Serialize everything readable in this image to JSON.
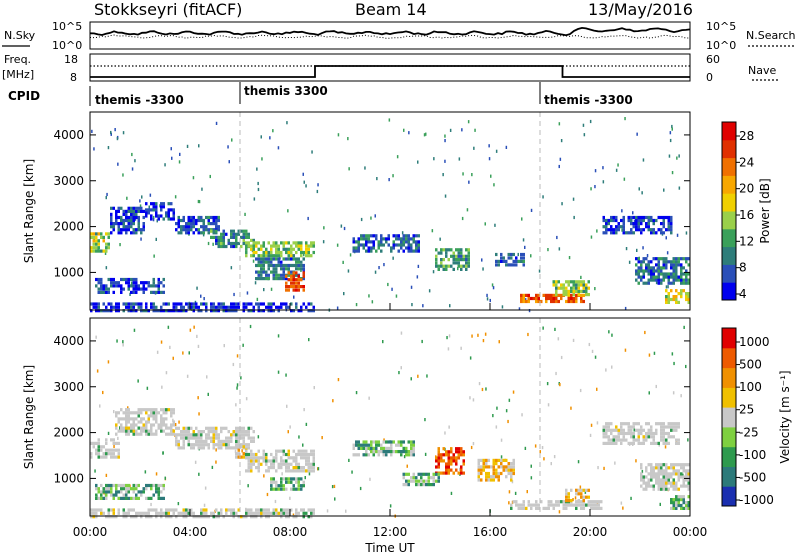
{
  "header": {
    "station": "Stokkseyri (fitACF)",
    "beam": "Beam 14",
    "date": "13/May/2016"
  },
  "summary": {
    "nsky_label": "N.Sky",
    "nsky_ticks": [
      "10^5",
      "10^0"
    ],
    "nsearch_label": "N.Search",
    "nsearch_ticks": [
      "10^5",
      "10^0"
    ],
    "freq_label_line1": "Freq.",
    "freq_label_line2": "[MHz]",
    "freq_ticks": [
      "18",
      "8"
    ],
    "nave_label": "Nave",
    "nave_ticks": [
      "60",
      "0"
    ],
    "cpid_label": "CPID",
    "cpid_segments": [
      {
        "start_hour": 0,
        "end_hour": 6,
        "name": "themis -3300"
      },
      {
        "start_hour": 6,
        "end_hour": 18,
        "name": "themis 3300"
      },
      {
        "start_hour": 18,
        "end_hour": 24,
        "name": "themis -3300"
      }
    ]
  },
  "chart_data": [
    {
      "type": "heatmap",
      "panel": "power",
      "ylabel": "Slant Range [km]",
      "xlabel": "",
      "xlim_hours": [
        0,
        24
      ],
      "ylim_km": [
        180,
        4500
      ],
      "yticks": [
        "4000",
        "3000",
        "2000",
        "1000"
      ],
      "colorbar": {
        "label": "Power [dB]",
        "ticks": [
          "28",
          "24",
          "20",
          "16",
          "12",
          "8",
          "4"
        ],
        "colors": [
          "#0000ee",
          "#2a4fb8",
          "#2e7d7a",
          "#3aa05a",
          "#9ad04a",
          "#f0d000",
          "#f7a700",
          "#f07000",
          "#e03000",
          "#e00000"
        ]
      },
      "regions": [
        {
          "t0": 0.0,
          "t1": 0.8,
          "r0": 1500,
          "r1": 1950,
          "v": 16
        },
        {
          "t0": 0.8,
          "t1": 2.2,
          "r0": 1900,
          "r1": 2500,
          "v": 6
        },
        {
          "t0": 2.2,
          "t1": 3.4,
          "r0": 2200,
          "r1": 2600,
          "v": 5
        },
        {
          "t0": 3.4,
          "t1": 5.2,
          "r0": 1900,
          "r1": 2300,
          "v": 7
        },
        {
          "t0": 4.8,
          "t1": 6.6,
          "r0": 1600,
          "r1": 2000,
          "v": 10
        },
        {
          "t0": 6.2,
          "t1": 9.0,
          "r0": 1400,
          "r1": 1750,
          "v": 14
        },
        {
          "t0": 6.6,
          "t1": 8.6,
          "r0": 900,
          "r1": 1400,
          "v": 9
        },
        {
          "t0": 7.8,
          "t1": 8.6,
          "r0": 650,
          "r1": 1100,
          "v": 27
        },
        {
          "t0": 0.2,
          "t1": 3.0,
          "r0": 600,
          "r1": 950,
          "v": 6
        },
        {
          "t0": 0.0,
          "t1": 9.0,
          "r0": 200,
          "r1": 420,
          "v": 5
        },
        {
          "t0": 10.5,
          "t1": 13.2,
          "r0": 1500,
          "r1": 1900,
          "v": 8
        },
        {
          "t0": 13.8,
          "t1": 15.2,
          "r0": 1100,
          "r1": 1600,
          "v": 12
        },
        {
          "t0": 16.2,
          "t1": 17.4,
          "r0": 1200,
          "r1": 1500,
          "v": 7
        },
        {
          "t0": 17.2,
          "t1": 19.8,
          "r0": 400,
          "r1": 600,
          "v": 26
        },
        {
          "t0": 18.5,
          "t1": 20.0,
          "r0": 550,
          "r1": 900,
          "v": 15
        },
        {
          "t0": 20.5,
          "t1": 23.3,
          "r0": 1900,
          "r1": 2300,
          "v": 6
        },
        {
          "t0": 21.8,
          "t1": 24.0,
          "r0": 800,
          "r1": 1400,
          "v": 9
        },
        {
          "t0": 23.0,
          "t1": 24.0,
          "r0": 380,
          "r1": 700,
          "v": 18
        }
      ]
    },
    {
      "type": "heatmap",
      "panel": "velocity",
      "ylabel": "Slant Range [km]",
      "xlabel": "Time UT",
      "xlim_hours": [
        0,
        24
      ],
      "ylim_km": [
        180,
        4500
      ],
      "yticks": [
        "4000",
        "3000",
        "2000",
        "1000"
      ],
      "xticks": [
        "00:00",
        "04:00",
        "08:00",
        "12:00",
        "16:00",
        "20:00",
        "00:00"
      ],
      "colorbar": {
        "label": "Velocity [m s⁻¹]",
        "ticks": [
          "1000",
          "500",
          "100",
          "25",
          "-25",
          "-100",
          "-500",
          "-1000"
        ],
        "colors": [
          "#1a2fb0",
          "#2c7a7a",
          "#2e9a4e",
          "#7ed040",
          "#c8c8c8",
          "#f0c000",
          "#f09000",
          "#ee5a00",
          "#e00000"
        ]
      },
      "regions": [
        {
          "t0": 0.0,
          "t1": 1.2,
          "r0": 1500,
          "r1": 1950,
          "v": "g"
        },
        {
          "t0": 1.0,
          "t1": 3.4,
          "r0": 2000,
          "r1": 2600,
          "v": "g"
        },
        {
          "t0": 3.4,
          "t1": 6.6,
          "r0": 1700,
          "r1": 2200,
          "v": "g"
        },
        {
          "t0": 5.8,
          "t1": 6.3,
          "r0": 1500,
          "r1": 1800,
          "v": -80
        },
        {
          "t0": 6.2,
          "t1": 9.0,
          "r0": 1200,
          "r1": 1700,
          "v": "g"
        },
        {
          "t0": 7.2,
          "t1": 8.6,
          "r0": 800,
          "r1": 1100,
          "v": 80
        },
        {
          "t0": 0.2,
          "t1": 3.0,
          "r0": 600,
          "r1": 950,
          "v": 80
        },
        {
          "t0": 0.0,
          "t1": 9.0,
          "r0": 200,
          "r1": 420,
          "v": "g"
        },
        {
          "t0": 10.5,
          "t1": 13.0,
          "r0": 1550,
          "r1": 1900,
          "v": 80
        },
        {
          "t0": 13.8,
          "t1": 15.0,
          "r0": 1150,
          "r1": 1750,
          "v": -400
        },
        {
          "t0": 12.5,
          "t1": 14.0,
          "r0": 900,
          "r1": 1200,
          "v": 80
        },
        {
          "t0": 15.5,
          "t1": 17.0,
          "r0": 1000,
          "r1": 1500,
          "v": -150
        },
        {
          "t0": 16.8,
          "t1": 20.5,
          "r0": 380,
          "r1": 600,
          "v": "g"
        },
        {
          "t0": 19.0,
          "t1": 20.0,
          "r0": 550,
          "r1": 850,
          "v": -80
        },
        {
          "t0": 20.5,
          "t1": 23.6,
          "r0": 1800,
          "r1": 2300,
          "v": "g"
        },
        {
          "t0": 22.0,
          "t1": 24.0,
          "r0": 800,
          "r1": 1400,
          "v": "g"
        },
        {
          "t0": 23.2,
          "t1": 24.0,
          "r0": 380,
          "r1": 700,
          "v": 80
        }
      ]
    }
  ]
}
